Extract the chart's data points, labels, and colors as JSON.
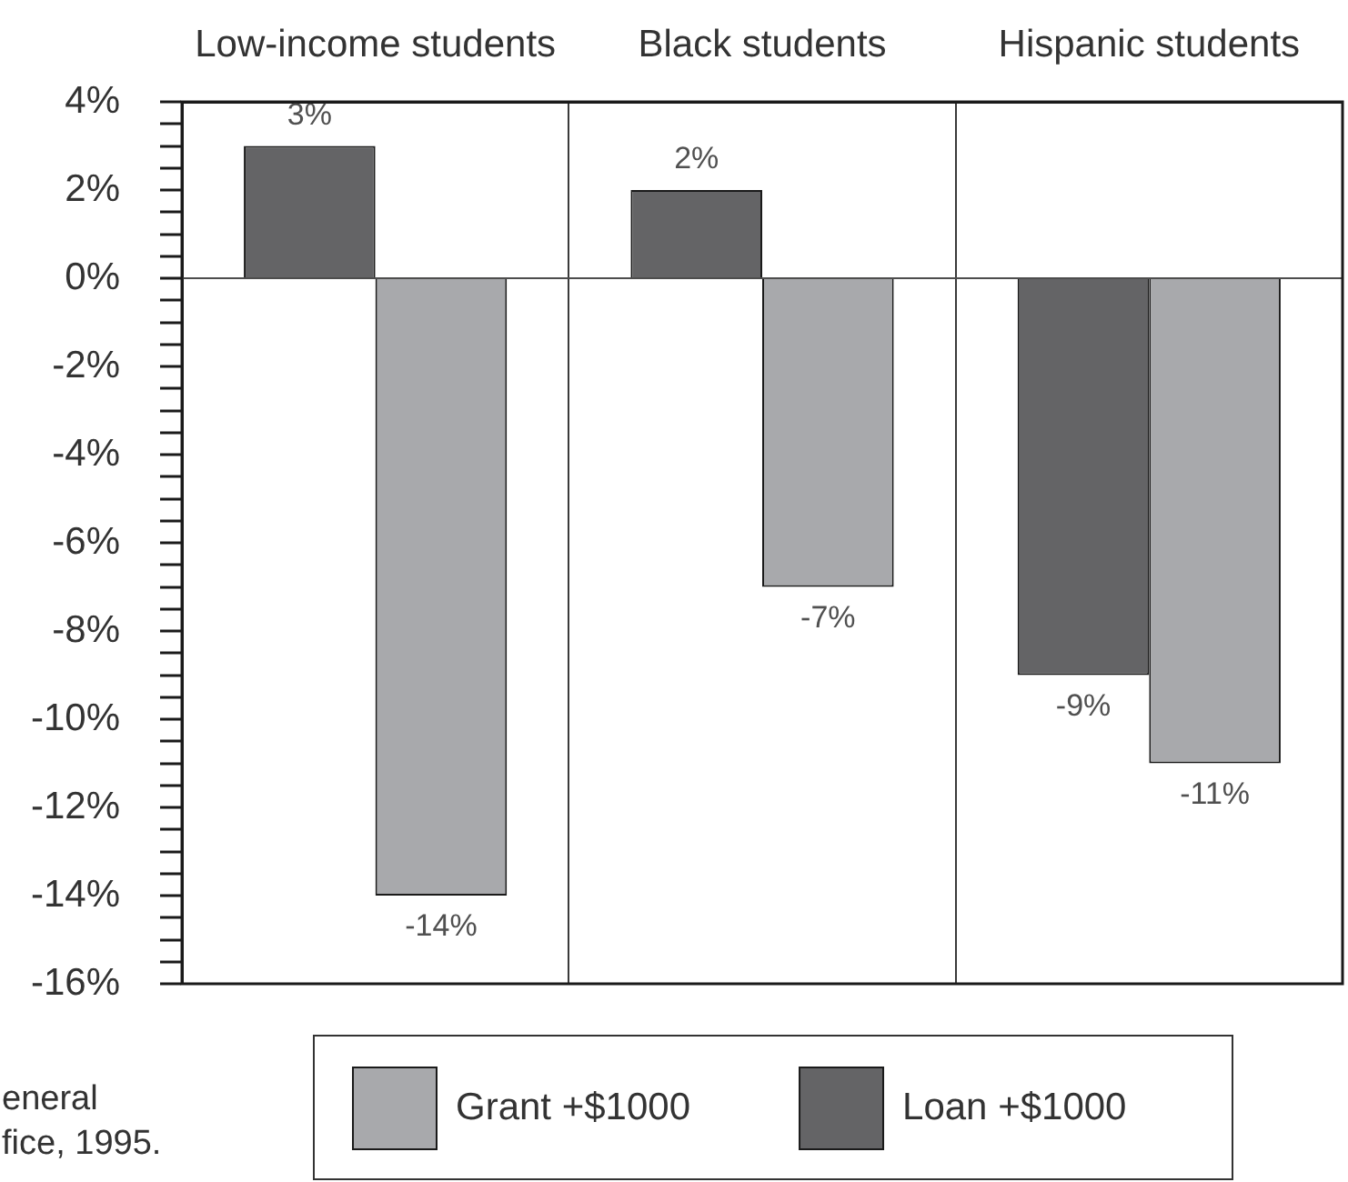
{
  "chart_data": {
    "type": "bar",
    "categories": [
      "Low-income students",
      "Black students",
      "Hispanic students"
    ],
    "series": [
      {
        "name": "Loan +$1000",
        "color": "#646466",
        "values": [
          3,
          2,
          -9
        ],
        "value_labels": [
          "3%",
          "2%",
          "-9%"
        ]
      },
      {
        "name": "Grant +$1000",
        "color": "#a8a9ac",
        "values": [
          -14,
          -7,
          -11
        ],
        "value_labels": [
          "-14%",
          "-7%",
          "-11%"
        ]
      }
    ],
    "ylim": [
      -16,
      4
    ],
    "yticks": [
      {
        "value": -16,
        "label": "-16%"
      },
      {
        "value": -15.5,
        "label": null
      },
      {
        "value": -15,
        "label": null
      },
      {
        "value": -14.5,
        "label": null
      },
      {
        "value": -14,
        "label": "-14%"
      },
      {
        "value": -13.5,
        "label": null
      },
      {
        "value": -13,
        "label": null
      },
      {
        "value": -12.5,
        "label": null
      },
      {
        "value": -12,
        "label": "-12%"
      },
      {
        "value": -11.5,
        "label": null
      },
      {
        "value": -11,
        "label": null
      },
      {
        "value": -10.5,
        "label": null
      },
      {
        "value": -10,
        "label": "-10%"
      },
      {
        "value": -9.5,
        "label": null
      },
      {
        "value": -9,
        "label": null
      },
      {
        "value": -8.5,
        "label": null
      },
      {
        "value": -8,
        "label": "-8%"
      },
      {
        "value": -7.5,
        "label": null
      },
      {
        "value": -7,
        "label": null
      },
      {
        "value": -6.5,
        "label": null
      },
      {
        "value": -6,
        "label": "-6%"
      },
      {
        "value": -5.5,
        "label": null
      },
      {
        "value": -5,
        "label": null
      },
      {
        "value": -4.5,
        "label": null
      },
      {
        "value": -4,
        "label": "-4%"
      },
      {
        "value": -3.5,
        "label": null
      },
      {
        "value": -3,
        "label": null
      },
      {
        "value": -2.5,
        "label": null
      },
      {
        "value": -2,
        "label": "-2%"
      },
      {
        "value": -1.5,
        "label": null
      },
      {
        "value": -1,
        "label": null
      },
      {
        "value": -0.5,
        "label": null
      },
      {
        "value": 0,
        "label": "0%"
      },
      {
        "value": 0.5,
        "label": null
      },
      {
        "value": 1,
        "label": null
      },
      {
        "value": 1.5,
        "label": null
      },
      {
        "value": 2,
        "label": "2%"
      },
      {
        "value": 2.5,
        "label": null
      },
      {
        "value": 3,
        "label": null
      },
      {
        "value": 3.5,
        "label": null
      },
      {
        "value": 4,
        "label": "4%"
      }
    ],
    "grid": "x",
    "legend": "bottom",
    "ref_lines": [
      {
        "axis": "y",
        "value": 0
      }
    ],
    "annotations": [
      "eneral\nfice, 1995."
    ]
  }
}
